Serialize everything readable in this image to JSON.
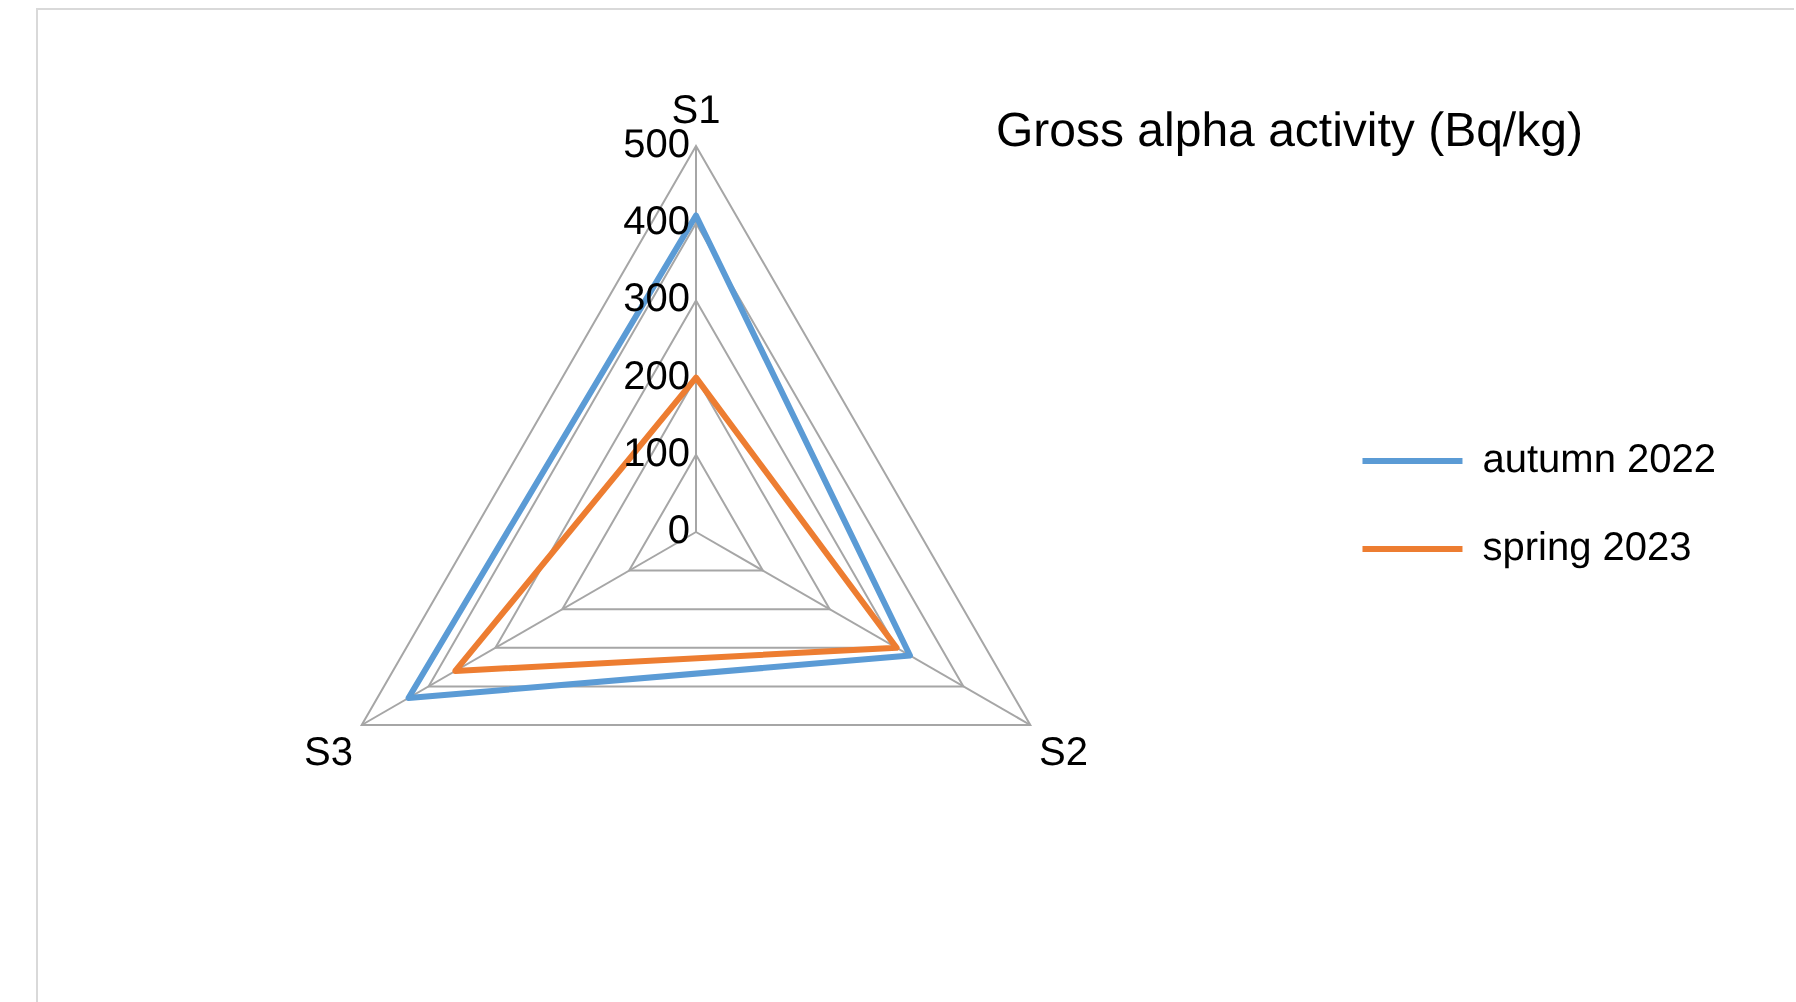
{
  "chart_data": {
    "type": "radar",
    "title": "Gross alpha activity (Bq/kg)",
    "categories": [
      "S1",
      "S2",
      "S3"
    ],
    "series": [
      {
        "name": "autumn 2022",
        "color": "#5b9bd5",
        "values": [
          410,
          320,
          430
        ]
      },
      {
        "name": "spring 2023",
        "color": "#ed7d31",
        "values": [
          200,
          300,
          360
        ]
      }
    ],
    "ylim": [
      0,
      500
    ],
    "yticks": [
      0,
      100,
      200,
      300,
      400,
      500
    ],
    "grid": true,
    "legend": "right",
    "marker": "none",
    "line_style": "solid"
  }
}
